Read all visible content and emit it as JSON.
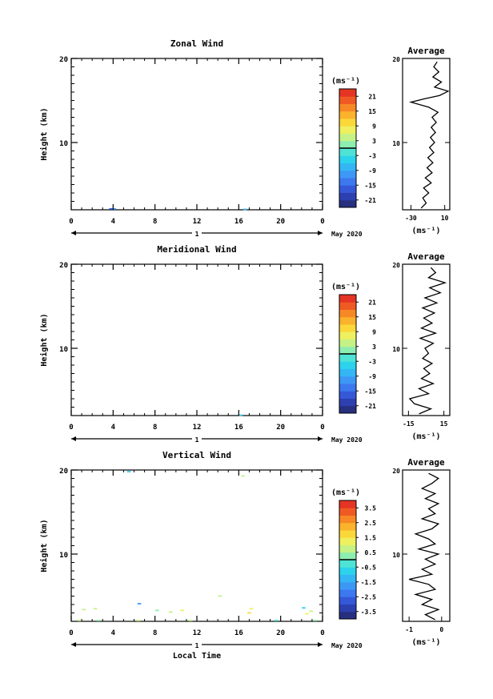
{
  "chart_data": [
    {
      "type": "heatmap",
      "title": "Zonal Wind",
      "ylabel": "Height (km)",
      "xlabel": "",
      "x_ticks": [
        "0",
        "4",
        "8",
        "12",
        "16",
        "20",
        "0"
      ],
      "y_ticks": [
        "10",
        "20"
      ],
      "xlim": [
        0,
        24
      ],
      "ylim": [
        2,
        20
      ],
      "day_marker": "1",
      "date_label": "May 2020",
      "colorbar": {
        "unit": "(ms⁻¹)",
        "ticks": [
          "21",
          "15",
          "9",
          "3",
          "-3",
          "-9",
          "-15",
          "-21"
        ],
        "range": [
          -24,
          24
        ]
      },
      "cells": [
        {
          "t": 3.8,
          "h": 2.1,
          "v": -18
        },
        {
          "t": 4.1,
          "h": 2.1,
          "v": -12
        },
        {
          "t": 16.6,
          "h": 2.05,
          "v": -9
        }
      ],
      "profile": {
        "title": "Average",
        "xlabel": "(ms⁻¹)",
        "x_ticks": [
          "-30",
          "10"
        ],
        "x_tick_values": [
          -30,
          10
        ],
        "xlim": [
          -40,
          16
        ],
        "y_ticks": [
          "10",
          "20"
        ],
        "ylim": [
          2,
          20
        ],
        "points": [
          [
            -18,
            2.2
          ],
          [
            -12,
            2.8
          ],
          [
            -16,
            3.4
          ],
          [
            -9,
            4.0
          ],
          [
            -15,
            4.6
          ],
          [
            -6,
            5.2
          ],
          [
            -13,
            5.8
          ],
          [
            -5,
            6.4
          ],
          [
            -11,
            7.0
          ],
          [
            -4,
            7.6
          ],
          [
            -10,
            8.2
          ],
          [
            -3,
            8.8
          ],
          [
            -8,
            9.4
          ],
          [
            -2,
            10.0
          ],
          [
            -7,
            10.6
          ],
          [
            -1,
            11.2
          ],
          [
            -6,
            11.8
          ],
          [
            0,
            12.4
          ],
          [
            -5,
            13.0
          ],
          [
            2,
            13.6
          ],
          [
            -9,
            14.2
          ],
          [
            -30,
            14.8
          ],
          [
            -14,
            15.2
          ],
          [
            4,
            15.6
          ],
          [
            14,
            16.1
          ],
          [
            -2,
            16.6
          ],
          [
            6,
            17.2
          ],
          [
            -4,
            17.8
          ],
          [
            3,
            18.4
          ],
          [
            -3,
            19.0
          ],
          [
            1,
            19.6
          ]
        ]
      }
    },
    {
      "type": "heatmap",
      "title": "Meridional Wind",
      "ylabel": "Height (km)",
      "xlabel": "",
      "x_ticks": [
        "0",
        "4",
        "8",
        "12",
        "16",
        "20",
        "0"
      ],
      "y_ticks": [
        "10",
        "20"
      ],
      "xlim": [
        0,
        24
      ],
      "ylim": [
        2,
        20
      ],
      "day_marker": "1",
      "date_label": "May 2020",
      "colorbar": {
        "unit": "(ms⁻¹)",
        "ticks": [
          "21",
          "15",
          "9",
          "3",
          "-3",
          "-9",
          "-15",
          "-21"
        ],
        "range": [
          -24,
          24
        ]
      },
      "cells": [
        {
          "t": 16.2,
          "h": 2.05,
          "v": -6
        }
      ],
      "profile": {
        "title": "Average",
        "xlabel": "(ms⁻¹)",
        "x_ticks": [
          "-15",
          "15"
        ],
        "x_tick_values": [
          -15,
          15
        ],
        "xlim": [
          -20,
          20
        ],
        "y_ticks": [
          "10",
          "20"
        ],
        "ylim": [
          2,
          20
        ],
        "points": [
          [
            -6,
            2.2
          ],
          [
            4,
            2.8
          ],
          [
            -10,
            3.4
          ],
          [
            -14,
            4.0
          ],
          [
            2,
            4.6
          ],
          [
            -6,
            5.2
          ],
          [
            6,
            5.8
          ],
          [
            -4,
            6.4
          ],
          [
            3,
            7.0
          ],
          [
            -2,
            7.6
          ],
          [
            5,
            8.2
          ],
          [
            -3,
            8.8
          ],
          [
            2,
            9.4
          ],
          [
            -1,
            10.0
          ],
          [
            6,
            10.6
          ],
          [
            -5,
            11.2
          ],
          [
            8,
            11.8
          ],
          [
            -4,
            12.4
          ],
          [
            5,
            13.0
          ],
          [
            -2,
            13.6
          ],
          [
            7,
            14.2
          ],
          [
            -3,
            14.8
          ],
          [
            9,
            15.4
          ],
          [
            -1,
            16.0
          ],
          [
            12,
            16.6
          ],
          [
            3,
            17.2
          ],
          [
            16,
            17.8
          ],
          [
            2,
            18.4
          ],
          [
            8,
            19.0
          ],
          [
            4,
            19.6
          ]
        ]
      }
    },
    {
      "type": "heatmap",
      "title": "Vertical Wind",
      "ylabel": "Height (km)",
      "xlabel": "Local Time",
      "x_ticks": [
        "0",
        "4",
        "8",
        "12",
        "16",
        "20",
        "0"
      ],
      "y_ticks": [
        "10",
        "20"
      ],
      "xlim": [
        0,
        24
      ],
      "ylim": [
        2,
        20
      ],
      "day_marker": "1",
      "date_label": "May 2020",
      "colorbar": {
        "unit": "(ms⁻¹)",
        "ticks": [
          "3.5",
          "2.5",
          "1.5",
          "0.5",
          "-0.5",
          "-1.5",
          "-2.5",
          "-3.5"
        ],
        "range": [
          -4,
          4
        ]
      },
      "cells": [
        {
          "t": 1.2,
          "h": 3.4,
          "v": 0.6
        },
        {
          "t": 2.3,
          "h": 3.5,
          "v": 0.8
        },
        {
          "t": 6.5,
          "h": 4.1,
          "v": -2.0
        },
        {
          "t": 8.2,
          "h": 3.3,
          "v": 0.4
        },
        {
          "t": 9.5,
          "h": 3.1,
          "v": 0.9
        },
        {
          "t": 10.6,
          "h": 3.3,
          "v": 1.4
        },
        {
          "t": 14.2,
          "h": 5.0,
          "v": 0.5
        },
        {
          "t": 17.2,
          "h": 3.5,
          "v": 1.2
        },
        {
          "t": 17.0,
          "h": 3.0,
          "v": 1.8
        },
        {
          "t": 22.2,
          "h": 3.6,
          "v": -0.9
        },
        {
          "t": 22.5,
          "h": 2.9,
          "v": 1.0
        },
        {
          "t": 22.9,
          "h": 3.2,
          "v": 0.7
        },
        {
          "t": 5.5,
          "h": 19.8,
          "v": -0.6
        },
        {
          "t": 16.4,
          "h": 19.3,
          "v": 0.7
        },
        {
          "t": 0.8,
          "h": 2.1,
          "v": 0.5
        },
        {
          "t": 2.6,
          "h": 2.1,
          "v": 0.3
        },
        {
          "t": 6.4,
          "h": 2.1,
          "v": 0.8
        },
        {
          "t": 11.4,
          "h": 2.1,
          "v": 0.6
        },
        {
          "t": 19.6,
          "h": 2.1,
          "v": -0.5
        },
        {
          "t": 23.3,
          "h": 2.1,
          "v": 0.4
        }
      ],
      "profile": {
        "title": "Average",
        "xlabel": "(ms⁻¹)",
        "x_ticks": [
          "-1",
          "0"
        ],
        "x_tick_values": [
          -1,
          0
        ],
        "xlim": [
          -1.2,
          0.25
        ],
        "y_ticks": [
          "10",
          "20"
        ],
        "ylim": [
          2,
          20
        ],
        "points": [
          [
            -0.2,
            2.2
          ],
          [
            -0.5,
            2.8
          ],
          [
            -0.1,
            3.4
          ],
          [
            -0.6,
            4.0
          ],
          [
            -0.3,
            4.6
          ],
          [
            -0.8,
            5.2
          ],
          [
            -0.2,
            5.8
          ],
          [
            -0.4,
            6.4
          ],
          [
            -1.0,
            7.0
          ],
          [
            -0.3,
            7.6
          ],
          [
            -0.6,
            8.2
          ],
          [
            -0.2,
            8.8
          ],
          [
            -0.5,
            9.4
          ],
          [
            -0.1,
            10.0
          ],
          [
            -0.7,
            10.6
          ],
          [
            -0.2,
            11.2
          ],
          [
            -0.4,
            11.8
          ],
          [
            -0.8,
            12.4
          ],
          [
            -0.3,
            13.0
          ],
          [
            -0.1,
            13.6
          ],
          [
            -0.6,
            14.2
          ],
          [
            -0.2,
            14.8
          ],
          [
            -0.4,
            15.4
          ],
          [
            -0.1,
            16.0
          ],
          [
            -0.5,
            16.6
          ],
          [
            -0.2,
            17.2
          ],
          [
            -0.6,
            17.8
          ],
          [
            -0.3,
            18.4
          ],
          [
            -0.1,
            19.0
          ],
          [
            -0.4,
            19.6
          ]
        ]
      }
    }
  ]
}
